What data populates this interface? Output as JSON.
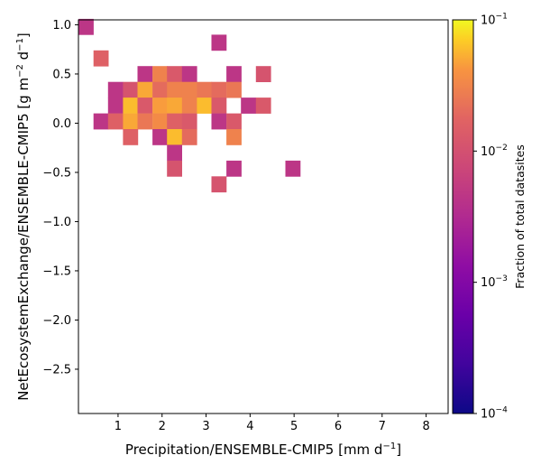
{
  "chart_data": {
    "type": "heatmap",
    "title": "",
    "xlabel": {
      "main": "Precipitation/ENSEMBLE-CMIP5 [mm d",
      "sup": "−1",
      "tail": "]"
    },
    "ylabel": {
      "main": "NetEcosystemExchange/ENSEMBLE-CMIP5 [g m",
      "sup1": "−2",
      "mid": " d",
      "sup2": "−1",
      "tail": "]"
    },
    "xlim": [
      0.1,
      8.5
    ],
    "ylim": [
      -2.95,
      1.05
    ],
    "x_ticks": [
      1,
      2,
      3,
      4,
      5,
      6,
      7,
      8
    ],
    "x_tick_labels": [
      "1",
      "2",
      "3",
      "4",
      "5",
      "6",
      "7",
      "8"
    ],
    "y_ticks": [
      1.0,
      0.5,
      0.0,
      -0.5,
      -1.0,
      -1.5,
      -2.0,
      -2.5
    ],
    "y_tick_labels": [
      "1.0",
      "0.5",
      "0.0",
      "−0.5",
      "−1.0",
      "−1.5",
      "−2.0",
      "−2.5"
    ],
    "bin_width_x": 0.336,
    "bin_height_y": 0.16,
    "colormap": "plasma",
    "color_scale": "log",
    "colorbar": {
      "label": "Fraction of total datasites",
      "range": [
        0.0001,
        0.1
      ],
      "ticks": [
        {
          "value": 0.1,
          "base": "10",
          "exp": "−1"
        },
        {
          "value": 0.01,
          "base": "10",
          "exp": "−2"
        },
        {
          "value": 0.001,
          "base": "10",
          "exp": "−3"
        },
        {
          "value": 0.0001,
          "base": "10",
          "exp": "−4"
        }
      ]
    },
    "cells": [
      {
        "x": 0.27,
        "y": 0.98,
        "value": 0.0045
      },
      {
        "x": 0.61,
        "y": 0.66,
        "value": 0.016
      },
      {
        "x": 3.29,
        "y": 0.82,
        "value": 0.0045
      },
      {
        "x": 1.61,
        "y": 0.5,
        "value": 0.0045
      },
      {
        "x": 1.95,
        "y": 0.5,
        "value": 0.03
      },
      {
        "x": 2.28,
        "y": 0.5,
        "value": 0.013
      },
      {
        "x": 2.62,
        "y": 0.5,
        "value": 0.0045
      },
      {
        "x": 3.63,
        "y": 0.5,
        "value": 0.0045
      },
      {
        "x": 4.3,
        "y": 0.5,
        "value": 0.011
      },
      {
        "x": 0.94,
        "y": 0.34,
        "value": 0.0045
      },
      {
        "x": 1.28,
        "y": 0.34,
        "value": 0.011
      },
      {
        "x": 1.61,
        "y": 0.34,
        "value": 0.05
      },
      {
        "x": 1.95,
        "y": 0.34,
        "value": 0.02
      },
      {
        "x": 2.28,
        "y": 0.34,
        "value": 0.03
      },
      {
        "x": 2.62,
        "y": 0.34,
        "value": 0.03
      },
      {
        "x": 2.96,
        "y": 0.34,
        "value": 0.025
      },
      {
        "x": 3.29,
        "y": 0.34,
        "value": 0.02
      },
      {
        "x": 3.63,
        "y": 0.34,
        "value": 0.025
      },
      {
        "x": 0.94,
        "y": 0.18,
        "value": 0.0045
      },
      {
        "x": 1.28,
        "y": 0.18,
        "value": 0.06
      },
      {
        "x": 1.61,
        "y": 0.18,
        "value": 0.013
      },
      {
        "x": 1.95,
        "y": 0.18,
        "value": 0.045
      },
      {
        "x": 2.28,
        "y": 0.18,
        "value": 0.05
      },
      {
        "x": 2.62,
        "y": 0.18,
        "value": 0.03
      },
      {
        "x": 2.96,
        "y": 0.18,
        "value": 0.06
      },
      {
        "x": 3.29,
        "y": 0.18,
        "value": 0.013
      },
      {
        "x": 3.96,
        "y": 0.18,
        "value": 0.0045
      },
      {
        "x": 4.3,
        "y": 0.18,
        "value": 0.013
      },
      {
        "x": 0.61,
        "y": 0.02,
        "value": 0.0045
      },
      {
        "x": 0.94,
        "y": 0.02,
        "value": 0.016
      },
      {
        "x": 1.28,
        "y": 0.02,
        "value": 0.05
      },
      {
        "x": 1.61,
        "y": 0.02,
        "value": 0.025
      },
      {
        "x": 1.95,
        "y": 0.02,
        "value": 0.035
      },
      {
        "x": 2.28,
        "y": 0.02,
        "value": 0.016
      },
      {
        "x": 2.62,
        "y": 0.02,
        "value": 0.013
      },
      {
        "x": 3.29,
        "y": 0.02,
        "value": 0.0045
      },
      {
        "x": 3.63,
        "y": 0.02,
        "value": 0.013
      },
      {
        "x": 1.28,
        "y": -0.14,
        "value": 0.016
      },
      {
        "x": 1.95,
        "y": -0.14,
        "value": 0.0045
      },
      {
        "x": 2.28,
        "y": -0.14,
        "value": 0.06
      },
      {
        "x": 2.62,
        "y": -0.14,
        "value": 0.02
      },
      {
        "x": 3.63,
        "y": -0.14,
        "value": 0.03
      },
      {
        "x": 2.28,
        "y": -0.3,
        "value": 0.0045
      },
      {
        "x": 2.28,
        "y": -0.46,
        "value": 0.011
      },
      {
        "x": 3.63,
        "y": -0.46,
        "value": 0.0045
      },
      {
        "x": 4.97,
        "y": -0.46,
        "value": 0.0045
      },
      {
        "x": 3.29,
        "y": -0.62,
        "value": 0.011
      }
    ]
  }
}
